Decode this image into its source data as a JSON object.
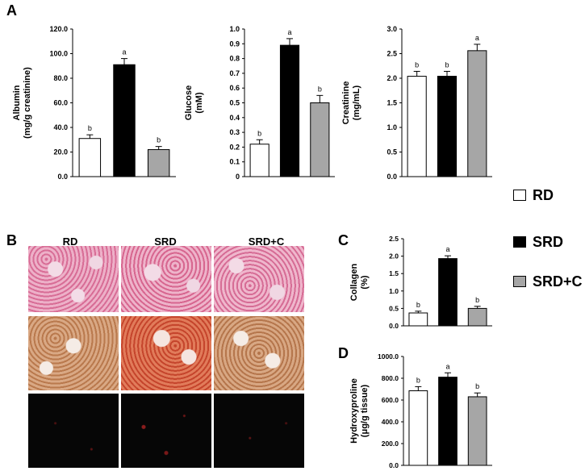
{
  "panels": {
    "A": "A",
    "B": "B",
    "C": "C",
    "D": "D"
  },
  "legend": [
    {
      "label": "RD",
      "color": "#ffffff"
    },
    {
      "label": "SRD",
      "color": "#000000"
    },
    {
      "label": "SRD+C",
      "color": "#a6a6a6"
    }
  ],
  "micrograph_columns": [
    "RD",
    "SRD",
    "SRD+C"
  ],
  "chart_data": [
    {
      "id": "albumin",
      "type": "bar",
      "categories": [
        "RD",
        "SRD",
        "SRD+C"
      ],
      "values": [
        31,
        91,
        22
      ],
      "errors": [
        3,
        5,
        2.5
      ],
      "letters": [
        "b",
        "a",
        "b"
      ],
      "ylabel": [
        "Albumin",
        "(mg/g creatinine)"
      ],
      "ylim": [
        0,
        120
      ],
      "yticks": [
        "0.0",
        "20.0",
        "40.0",
        "60.0",
        "80.0",
        "100.0",
        "120.0"
      ]
    },
    {
      "id": "glucose",
      "type": "bar",
      "categories": [
        "RD",
        "SRD",
        "SRD+C"
      ],
      "values": [
        0.22,
        0.89,
        0.5
      ],
      "errors": [
        0.03,
        0.045,
        0.05
      ],
      "letters": [
        "b",
        "a",
        "b"
      ],
      "ylabel": [
        "Glucose",
        "(mM)"
      ],
      "ylim": [
        0,
        1.0
      ],
      "yticks": [
        "0",
        "0.1",
        "0.2",
        "0.3",
        "0.4",
        "0.5",
        "0.6",
        "0.7",
        "0.8",
        "0.9",
        "1.0"
      ]
    },
    {
      "id": "creatinine",
      "type": "bar",
      "categories": [
        "RD",
        "SRD",
        "SRD+C"
      ],
      "values": [
        2.04,
        2.04,
        2.56
      ],
      "errors": [
        0.1,
        0.1,
        0.13
      ],
      "letters": [
        "b",
        "b",
        "a"
      ],
      "ylabel": [
        "Creatinine",
        "(mg/mL)"
      ],
      "ylim": [
        0,
        3.0
      ],
      "yticks": [
        "0.0",
        "0.5",
        "1.0",
        "1.5",
        "2.0",
        "2.5",
        "3.0"
      ]
    },
    {
      "id": "collagen",
      "type": "bar",
      "categories": [
        "RD",
        "SRD",
        "SRD+C"
      ],
      "values": [
        0.37,
        1.93,
        0.5
      ],
      "errors": [
        0.05,
        0.08,
        0.06
      ],
      "letters": [
        "b",
        "a",
        "b"
      ],
      "ylabel": [
        "Collagen",
        "(%)"
      ],
      "ylim": [
        0,
        2.5
      ],
      "yticks": [
        "0.0",
        "0.5",
        "1.0",
        "1.5",
        "2.0",
        "2.5"
      ]
    },
    {
      "id": "hydroxyproline",
      "type": "bar",
      "categories": [
        "RD",
        "SRD",
        "SRD+C"
      ],
      "values": [
        685,
        810,
        630
      ],
      "errors": [
        38,
        40,
        35
      ],
      "letters": [
        "b",
        "a",
        "b"
      ],
      "ylabel": [
        "Hydroxyproline",
        "(μg/g tissue)"
      ],
      "ylim": [
        0,
        1000
      ],
      "yticks": [
        "0.0",
        "200.0",
        "400.0",
        "600.0",
        "800.0",
        "1000.0"
      ]
    }
  ]
}
